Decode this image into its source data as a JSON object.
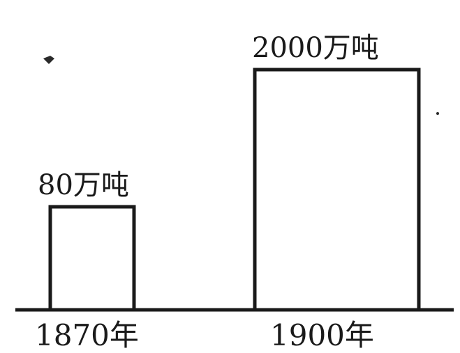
{
  "chart_data": {
    "type": "bar",
    "categories": [
      "1870年",
      "1900年"
    ],
    "values": [
      80,
      2000
    ],
    "data_labels": [
      "80万吨",
      "2000万吨"
    ],
    "title": "",
    "xlabel": "",
    "ylabel": "",
    "ylim": [
      0,
      2000
    ],
    "grid": false,
    "bar_fill": "#ffffff",
    "bar_stroke": "#1a1a1a"
  }
}
